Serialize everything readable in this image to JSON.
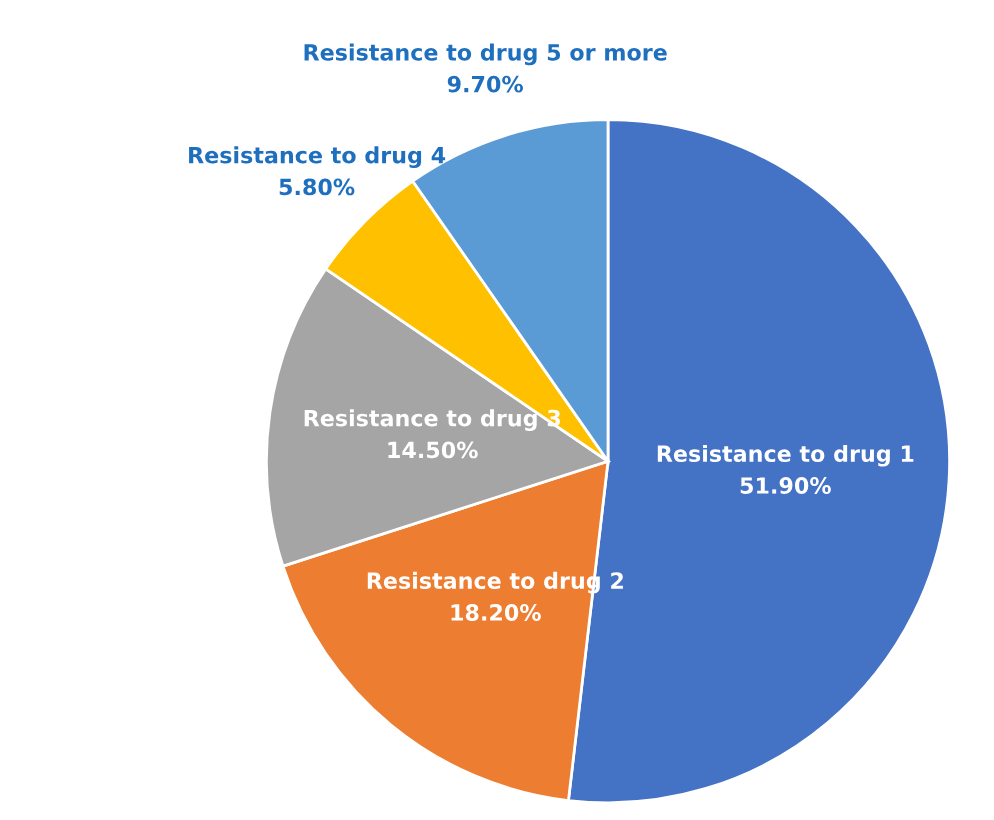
{
  "chart_data": {
    "type": "pie",
    "categories": [
      "Resistance to drug 1",
      "Resistance to drug 2",
      "Resistance to drug 3",
      "Resistance to drug 4",
      "Resistance to drug 5 or more"
    ],
    "values": [
      51.9,
      18.2,
      14.5,
      5.8,
      9.7
    ],
    "value_labels": [
      "51.90%",
      "18.20%",
      "14.50%",
      "5.80%",
      "9.70%"
    ],
    "colors": [
      "#4472c4",
      "#ed7d31",
      "#a5a5a5",
      "#ffc000",
      "#5b9bd5"
    ],
    "legend": false
  }
}
